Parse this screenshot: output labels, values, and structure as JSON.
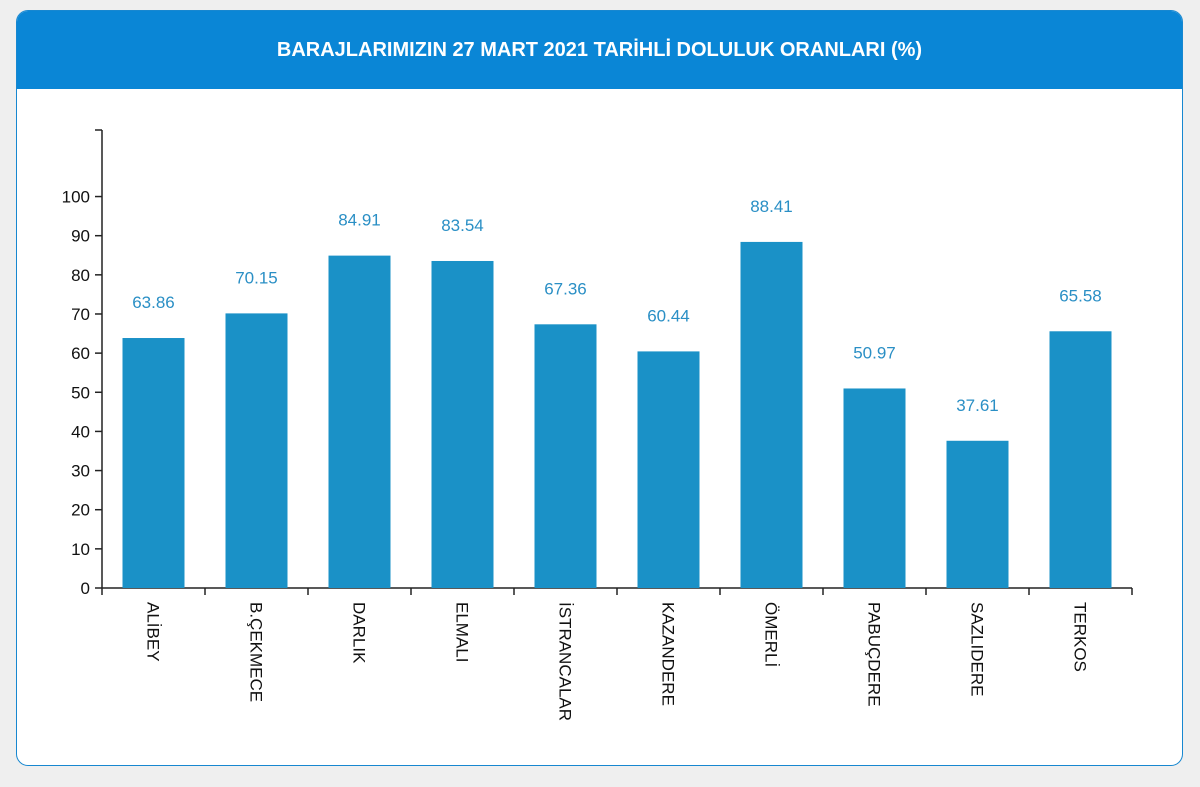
{
  "chart_data": {
    "type": "bar",
    "title": "BARAJLARIMIZIN 27 MART 2021 TARİHLİ DOLULUK ORANLARI (%)",
    "categories": [
      "ALİBEY",
      "B.ÇEKMECE",
      "DARLIK",
      "ELMALI",
      "İSTRANCALAR",
      "KAZANDERE",
      "ÖMERLİ",
      "PABUÇDERE",
      "SAZLIDERE",
      "TERKOS"
    ],
    "values": [
      63.86,
      70.15,
      84.91,
      83.54,
      67.36,
      60.44,
      88.41,
      50.97,
      37.61,
      65.58
    ],
    "color": "#1a91c7",
    "label_color": "#2a8fc5",
    "ylim": [
      0,
      117
    ],
    "yticks": [
      0,
      10,
      20,
      30,
      40,
      50,
      60,
      70,
      80,
      90,
      100
    ]
  }
}
